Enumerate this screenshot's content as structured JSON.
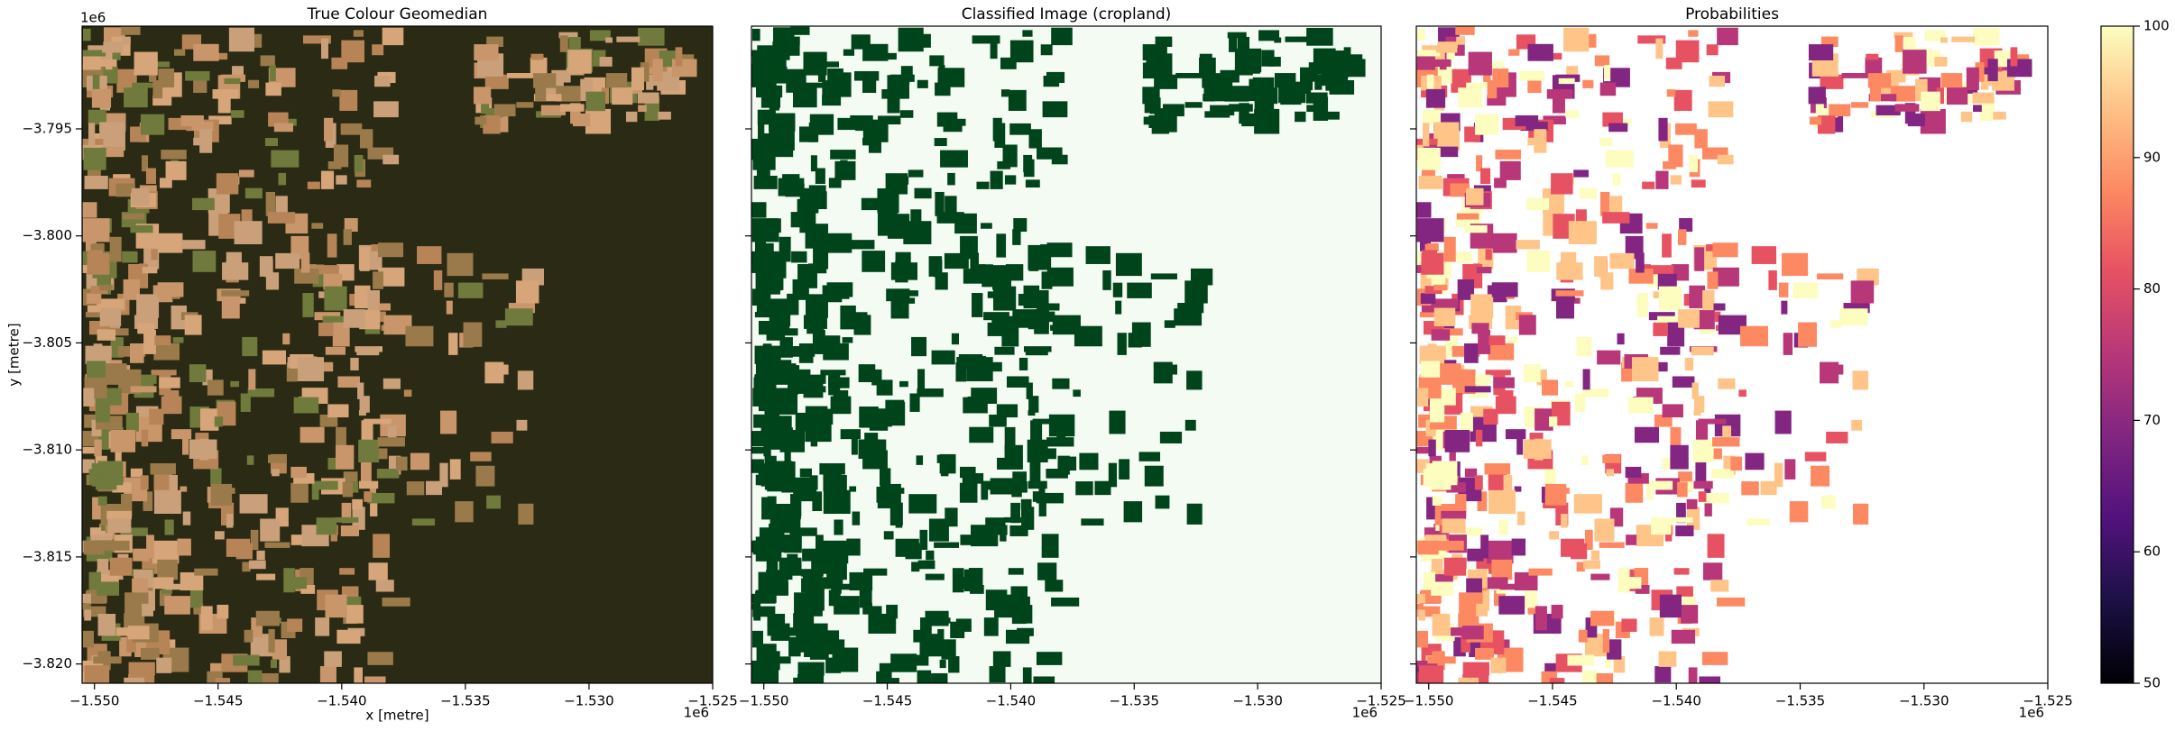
{
  "chart_data": [
    {
      "type": "image",
      "title": "True Colour Geomedian",
      "palette": "truecolor",
      "xlabel": "x [metre]",
      "ylabel": "y [metre]",
      "xoffset": "1e6",
      "yoffset": "1e6",
      "xlim": [
        -1.5505,
        -1.525
      ],
      "ylim": [
        -3.8209,
        -3.7902
      ],
      "xticks": [
        {
          "value": -1.55,
          "label": "−1.550"
        },
        {
          "value": -1.545,
          "label": "−1.545"
        },
        {
          "value": -1.54,
          "label": "−1.540"
        },
        {
          "value": -1.535,
          "label": "−1.535"
        },
        {
          "value": -1.53,
          "label": "−1.530"
        },
        {
          "value": -1.525,
          "label": "−1.525"
        }
      ],
      "yticks": [
        {
          "value": -3.795,
          "label": "−3.795"
        },
        {
          "value": -3.8,
          "label": "−3.800"
        },
        {
          "value": -3.805,
          "label": "−3.805"
        },
        {
          "value": -3.81,
          "label": "−3.810"
        },
        {
          "value": -3.815,
          "label": "−3.815"
        },
        {
          "value": -3.82,
          "label": "−3.820"
        }
      ]
    },
    {
      "type": "image",
      "title": "Classified Image (cropland)",
      "palette": "greens",
      "xoffset": "1e6",
      "xlim": [
        -1.5505,
        -1.525
      ],
      "ylim": [
        -3.8209,
        -3.7902
      ],
      "xticks": [
        {
          "value": -1.55,
          "label": "−1.550"
        },
        {
          "value": -1.545,
          "label": "−1.545"
        },
        {
          "value": -1.54,
          "label": "−1.540"
        },
        {
          "value": -1.535,
          "label": "−1.535"
        },
        {
          "value": -1.53,
          "label": "−1.530"
        },
        {
          "value": -1.525,
          "label": "−1.525"
        }
      ],
      "yticks": [
        -3.795,
        -3.8,
        -3.805,
        -3.81,
        -3.815,
        -3.82
      ]
    },
    {
      "type": "image",
      "title": "Probabilities",
      "palette": "magma",
      "xoffset": "1e6",
      "xlim": [
        -1.5505,
        -1.525
      ],
      "ylim": [
        -3.8209,
        -3.7902
      ],
      "xticks": [
        {
          "value": -1.55,
          "label": "−1.550"
        },
        {
          "value": -1.545,
          "label": "−1.545"
        },
        {
          "value": -1.54,
          "label": "−1.540"
        },
        {
          "value": -1.535,
          "label": "−1.535"
        },
        {
          "value": -1.53,
          "label": "−1.530"
        },
        {
          "value": -1.525,
          "label": "−1.525"
        }
      ],
      "yticks": [
        -3.795,
        -3.8,
        -3.805,
        -3.81,
        -3.815,
        -3.82
      ],
      "colorbar": {
        "colormap": "magma",
        "ylim": [
          50,
          100
        ],
        "yticks": [
          50,
          60,
          70,
          80,
          90,
          100
        ]
      }
    }
  ]
}
